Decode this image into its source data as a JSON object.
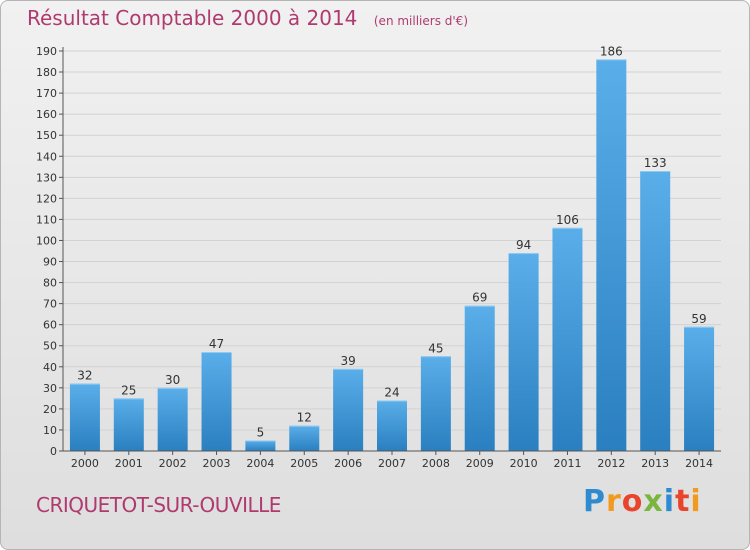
{
  "header": {
    "title": "Résultat Comptable 2000 à 2014",
    "subtitle": "(en milliers d'€)"
  },
  "footer": {
    "commune": "CRIQUETOT-SUR-OUVILLE",
    "brand": "Proxiti"
  },
  "colors": {
    "title": "#b03a6f",
    "bar_top": "#5aaee9",
    "bar_bottom": "#2a7fc0",
    "axis": "#555555",
    "grid": "#d2d2d2"
  },
  "chart_data": {
    "type": "bar",
    "title": "Résultat Comptable 2000 à 2014",
    "subtitle": "(en milliers d'€)",
    "categories": [
      "2000",
      "2001",
      "2002",
      "2003",
      "2004",
      "2005",
      "2006",
      "2007",
      "2008",
      "2009",
      "2010",
      "2011",
      "2012",
      "2013",
      "2014"
    ],
    "values": [
      32,
      25,
      30,
      47,
      5,
      12,
      39,
      24,
      45,
      69,
      94,
      106,
      186,
      133,
      59
    ],
    "data_labels": [
      "32",
      "25",
      "30",
      "47",
      "5",
      "12",
      "39",
      "24",
      "45",
      "69",
      "94",
      "106",
      "186",
      "133",
      "59"
    ],
    "y_ticks": [
      "0",
      "10",
      "20",
      "30",
      "40",
      "50",
      "60",
      "70",
      "80",
      "90",
      "100",
      "110",
      "120",
      "130",
      "140",
      "150",
      "160",
      "170",
      "180",
      "190"
    ],
    "ylim": [
      0,
      190
    ],
    "grid": true,
    "legend": "none"
  }
}
